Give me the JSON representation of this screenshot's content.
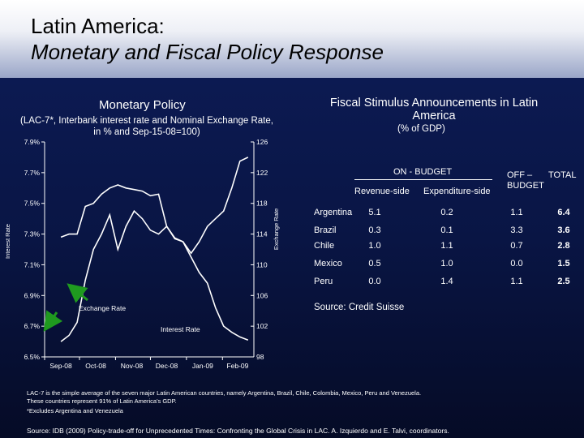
{
  "header": {
    "title_line1": "Latin America:",
    "title_line2": "Monetary and Fiscal Policy Response"
  },
  "left_chart": {
    "title": "Monetary Policy",
    "subtitle": "(LAC-7*, Interbank interest rate and Nominal Exchange Rate, in % and Sep-15-08=100)"
  },
  "right_panel": {
    "title": "Fiscal Stimulus Announcements in Latin America",
    "subtitle": "(% of GDP)",
    "on_budget_label": "ON - BUDGET",
    "off_budget_label": "OFF – BUDGET",
    "total_label": "TOTAL",
    "revenue_label": "Revenue-side",
    "expenditure_label": "Expenditure-side",
    "source": "Source: Credit Suisse"
  },
  "notes": {
    "note1": "LAC-7 is the simple average of the seven major Latin American countries, namely Argentina, Brazil, Chile, Colombia, Mexico, Peru and Venezuela.",
    "note2": "These countries represent 91% of Latin America's GDP.",
    "note3": "*Excludes Argentina and Venezuela",
    "source": "Source: IDB (2009) Policy-trade-off for Unprecedented Times: Confronting the Global Crisis in LAC. A. Izquierdo and E. Talvi, coordinators."
  },
  "colors": {
    "panel_bg": "#091544",
    "title_text": "#000000",
    "text": "#ffffff",
    "line": "#ffffff",
    "arrow": "#1f9a1f"
  },
  "chart_data": [
    {
      "type": "line",
      "title": "Monetary Policy",
      "xlabel": "",
      "ylabel": "Interest Rate",
      "y2label": "Exchange Rate",
      "x_tick_labels": [
        "Sep-08",
        "Oct-08",
        "Nov-08",
        "Dec-08",
        "Jan-09",
        "Feb-09"
      ],
      "y_tick_labels": [
        "6.5%",
        "6.7%",
        "6.9%",
        "7.1%",
        "7.3%",
        "7.5%",
        "7.7%",
        "7.9%"
      ],
      "y2_tick_labels": [
        "98",
        "102",
        "106",
        "110",
        "114",
        "118",
        "122",
        "126"
      ],
      "ylim": [
        6.5,
        7.9
      ],
      "y2lim": [
        98,
        126
      ],
      "grid": false,
      "annotations": [
        "Exchange Rate",
        "Interest Rate"
      ],
      "series": [
        {
          "name": "Interest Rate",
          "axis": "left",
          "x": [
            "2008-09-15",
            "2008-09-22",
            "2008-09-29",
            "2008-10-06",
            "2008-10-13",
            "2008-10-20",
            "2008-10-27",
            "2008-11-03",
            "2008-11-10",
            "2008-11-17",
            "2008-11-24",
            "2008-12-01",
            "2008-12-08",
            "2008-12-15",
            "2008-12-22",
            "2008-12-29",
            "2009-01-05",
            "2009-01-12",
            "2009-01-19",
            "2009-01-26",
            "2009-02-02",
            "2009-02-09",
            "2009-02-16",
            "2009-02-23"
          ],
          "y": [
            7.28,
            7.3,
            7.3,
            7.48,
            7.5,
            7.56,
            7.6,
            7.62,
            7.6,
            7.59,
            7.58,
            7.55,
            7.56,
            7.35,
            7.27,
            7.25,
            7.15,
            7.05,
            6.98,
            6.82,
            6.7,
            6.66,
            6.63,
            6.61
          ]
        },
        {
          "name": "Exchange Rate",
          "axis": "right",
          "x": [
            "2008-09-15",
            "2008-09-22",
            "2008-09-29",
            "2008-10-06",
            "2008-10-13",
            "2008-10-20",
            "2008-10-27",
            "2008-11-03",
            "2008-11-10",
            "2008-11-17",
            "2008-11-24",
            "2008-12-01",
            "2008-12-08",
            "2008-12-15",
            "2008-12-22",
            "2008-12-29",
            "2009-01-05",
            "2009-01-12",
            "2009-01-19",
            "2009-01-26",
            "2009-02-02",
            "2009-02-09",
            "2009-02-16",
            "2009-02-23"
          ],
          "y": [
            100,
            100.8,
            102.5,
            108,
            112,
            114,
            116.5,
            112,
            115,
            117,
            116,
            114.5,
            114,
            115,
            113.5,
            113,
            111.5,
            113,
            115,
            116,
            117,
            120,
            123.5,
            124
          ]
        }
      ]
    },
    {
      "type": "table",
      "title": "Fiscal Stimulus Announcements in Latin America",
      "columns": [
        "",
        "Revenue-side",
        "Expenditure-side",
        "OFF – BUDGET",
        "TOTAL"
      ],
      "rows": [
        {
          "country": "Argentina",
          "values": [
            "5.1",
            "0.2",
            "1.1",
            "6.4"
          ]
        },
        {
          "country": "Brazil",
          "values": [
            "0.3",
            "0.1",
            "3.3",
            "3.6"
          ]
        },
        {
          "country": "Chile",
          "values": [
            "1.0",
            "1.1",
            "0.7",
            "2.8"
          ]
        },
        {
          "country": "Mexico",
          "values": [
            "0.5",
            "1.0",
            "0.0",
            "1.5"
          ]
        },
        {
          "country": "Peru",
          "values": [
            "0.0",
            "1.4",
            "1.1",
            "2.5"
          ]
        }
      ]
    }
  ]
}
